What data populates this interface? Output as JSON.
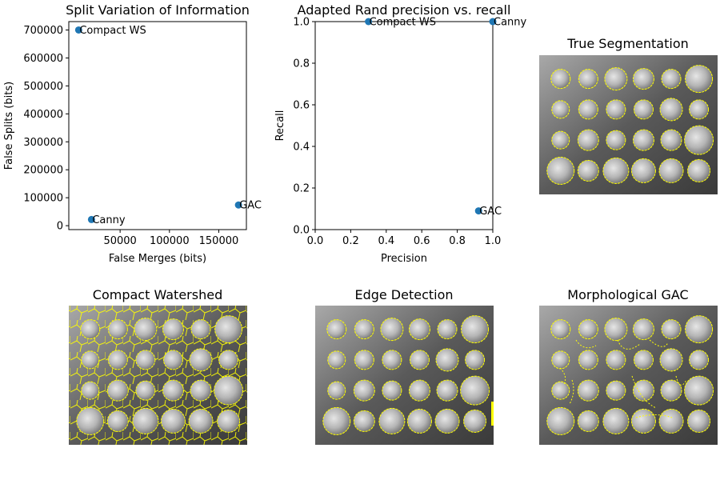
{
  "figure": {
    "titles": {
      "split_vi": "Split Variation of Information",
      "rand": "Adapted Rand precision vs. recall",
      "true_seg": "True Segmentation",
      "compact_ws": "Compact Watershed",
      "edge": "Edge Detection",
      "gac": "Morphological GAC"
    }
  },
  "chart_data": [
    {
      "type": "scatter",
      "title": "Split Variation of Information",
      "xlabel": "False Merges (bits)",
      "ylabel": "False Splits (bits)",
      "xlim": [
        -2000,
        178000
      ],
      "ylim": [
        -14000,
        730000
      ],
      "xticks": [
        50000,
        100000,
        150000
      ],
      "xtick_labels": [
        "50000",
        "100000",
        "150000"
      ],
      "yticks": [
        0,
        100000,
        200000,
        300000,
        400000,
        500000,
        600000,
        700000
      ],
      "ytick_labels": [
        "0",
        "100000",
        "200000",
        "300000",
        "400000",
        "500000",
        "600000",
        "700000"
      ],
      "points": [
        {
          "label": "Compact WS",
          "x": 8000,
          "y": 700000
        },
        {
          "label": "Canny",
          "x": 21000,
          "y": 22000
        },
        {
          "label": "GAC",
          "x": 170000,
          "y": 74000
        }
      ],
      "color": "#1f77b4"
    },
    {
      "type": "scatter",
      "title": "Adapted Rand precision vs. recall",
      "xlabel": "Precision",
      "ylabel": "Recall",
      "xlim": [
        0,
        1
      ],
      "ylim": [
        0,
        1
      ],
      "xticks": [
        0,
        0.2,
        0.4,
        0.6,
        0.8,
        1.0
      ],
      "xtick_labels": [
        "0.0",
        "0.2",
        "0.4",
        "0.6",
        "0.8",
        "1.0"
      ],
      "yticks": [
        0,
        0.2,
        0.4,
        0.6,
        0.8,
        1.0
      ],
      "ytick_labels": [
        "0.0",
        "0.2",
        "0.4",
        "0.6",
        "0.8",
        "1.0"
      ],
      "points": [
        {
          "label": "Compact WS",
          "x": 0.3,
          "y": 1.0
        },
        {
          "label": "Canny",
          "x": 1.0,
          "y": 1.0
        },
        {
          "label": "GAC",
          "x": 0.92,
          "y": 0.09
        }
      ],
      "color": "#1f77b4"
    }
  ]
}
